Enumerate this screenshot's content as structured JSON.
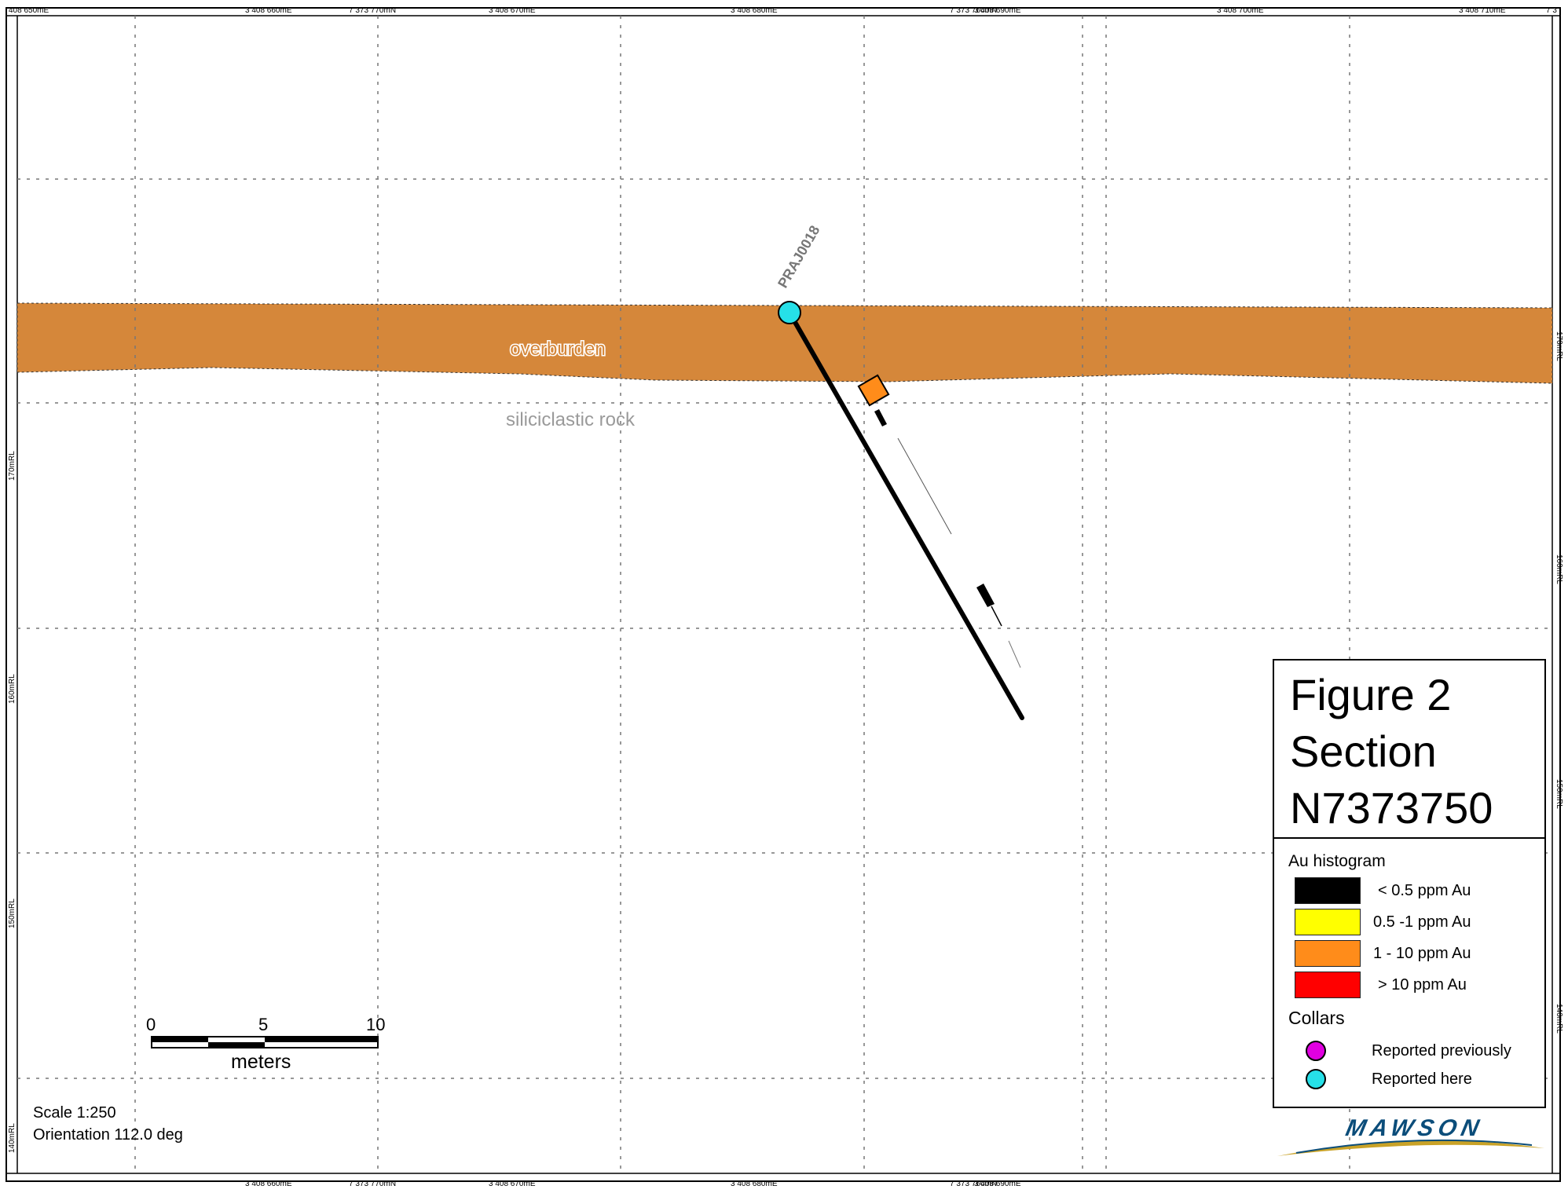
{
  "map": {
    "top_labels": [
      "408 650mE",
      "3 408 660mE",
      "7 373 770mN",
      "3 408 670mE",
      "3 408 680mE",
      "7 373 760mN",
      "3 408 690mE",
      "3 408 700mE",
      "3 408 710mE",
      "7 3"
    ],
    "bottom_labels": [
      "3 408 660mE",
      "7 373 770mN",
      "3 408 670mE",
      "3 408 680mE",
      "7 373 760mN",
      "3 408 690mE"
    ],
    "left_rl": [
      "170mRL",
      "160mRL",
      "150mRL",
      "140mRL"
    ],
    "right_rl": [
      "170mRL",
      "160mRL",
      "150mRL",
      "140mRL"
    ],
    "overburden_label": "overburden",
    "rock_label": "siliciclastic rock",
    "hole_id": "PRAJ0018",
    "colors": {
      "overburden": "#D5873A",
      "collar_here": "#26E0E8",
      "grid": "#777777"
    }
  },
  "legend": {
    "title_lines": [
      "Figure 2",
      "Section",
      "N7373750"
    ],
    "au_heading": "Au histogram",
    "au_items": [
      {
        "label": "< 0.5  ppm Au",
        "color": "#000000"
      },
      {
        "label": "0.5  -1 ppm Au",
        "color": "#FFFF00"
      },
      {
        "label": "1 - 10  ppm Au",
        "color": "#FF8C1A"
      },
      {
        "label": ">  10  ppm Au",
        "color": "#FF0000"
      }
    ],
    "collars_heading": "Collars",
    "collar_items": [
      {
        "label": "Reported previously",
        "color": "#E000E0"
      },
      {
        "label": "Reported here",
        "color": "#26E0E8"
      }
    ]
  },
  "scalebar": {
    "ticks": [
      "0",
      "5",
      "10"
    ],
    "unit": "meters"
  },
  "info": {
    "scale": "Scale 1:250",
    "orientation": "Orientation 112.0 deg"
  },
  "logo": {
    "text": "MAWSON",
    "color": "#0B4D7A",
    "swoosh": "#C9A227"
  }
}
